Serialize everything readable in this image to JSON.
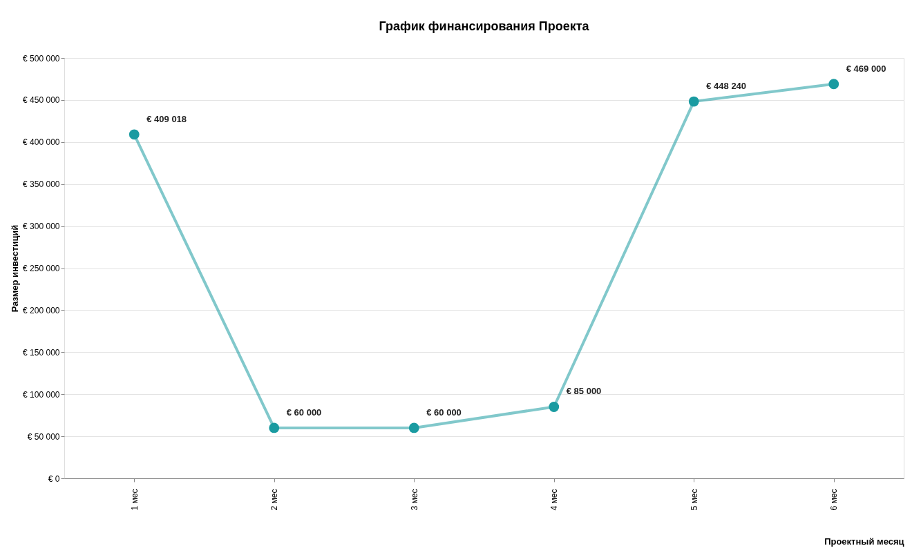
{
  "chart_data": {
    "type": "line",
    "title": "График финансирования Проекта",
    "xlabel": "Проектный месяц",
    "ylabel": "Размер инвестиций",
    "categories": [
      "1 мес",
      "2 мес",
      "3 мес",
      "4 мес",
      "5 мес",
      "6 мес"
    ],
    "series": [
      {
        "color": "#1a9ba1",
        "values": [
          409018,
          60000,
          60000,
          85000,
          448240,
          469000
        ],
        "value_labels": [
          "€ 409 018",
          "€ 60 000",
          "€ 60 000",
          "€ 85 000",
          "€ 448 240",
          "€ 469 000"
        ]
      }
    ],
    "ylim": [
      0,
      500000
    ],
    "yticks": [
      {
        "value": 0,
        "label": "€ 0"
      },
      {
        "value": 50000,
        "label": "€ 50 000"
      },
      {
        "value": 100000,
        "label": "€ 100 000"
      },
      {
        "value": 150000,
        "label": "€ 150 000"
      },
      {
        "value": 200000,
        "label": "€ 200 000"
      },
      {
        "value": 250000,
        "label": "€ 250 000"
      },
      {
        "value": 300000,
        "label": "€ 300 000"
      },
      {
        "value": 350000,
        "label": "€ 350 000"
      },
      {
        "value": 400000,
        "label": "€ 400 000"
      },
      {
        "value": 450000,
        "label": "€ 450 000"
      },
      {
        "value": 500000,
        "label": "€ 500 000"
      }
    ],
    "grid": "y",
    "marker": "circle",
    "line_style": "solid"
  }
}
